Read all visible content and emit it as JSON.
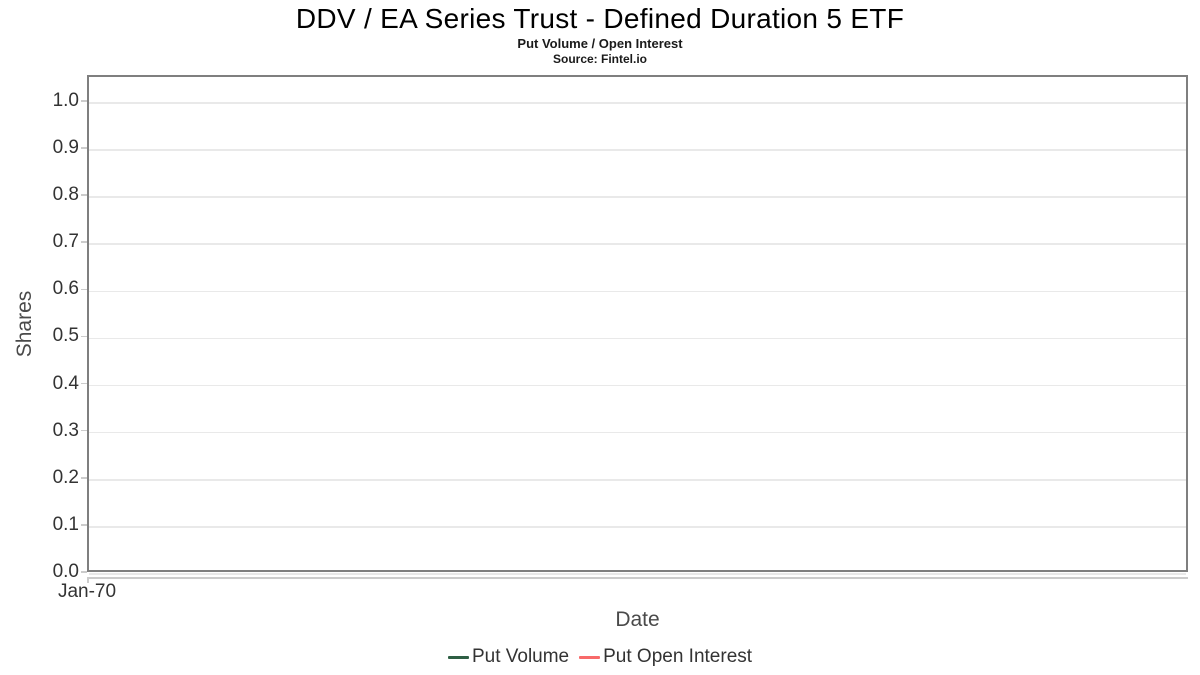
{
  "title": "DDV / EA Series Trust - Defined Duration 5 ETF",
  "subtitle": "Put Volume / Open Interest",
  "source": "Source: Fintel.io",
  "chart_data": {
    "type": "line",
    "title": "DDV / EA Series Trust - Defined Duration 5 ETF",
    "subtitle": "Put Volume / Open Interest",
    "source_note": "Source: Fintel.io",
    "xlabel": "Date",
    "ylabel": "Shares",
    "x_tick_labels": [
      "Jan-70"
    ],
    "y_ticks": [
      0,
      0.1,
      0.2,
      0.3,
      0.4,
      0.5,
      0.6,
      0.7,
      0.8,
      0.9,
      1.0
    ],
    "ylim": [
      0,
      1.055
    ],
    "grid": true,
    "legend_position": "bottom-center",
    "series": [
      {
        "name": "Put Volume",
        "color": "#2e5f44",
        "x": [],
        "values": []
      },
      {
        "name": "Put Open Interest",
        "color": "#f86a6a",
        "x": [],
        "values": []
      }
    ]
  },
  "colors": {
    "background": "#ffffff",
    "plot_border": "#7f7f7f",
    "gridline": "#e9e9e9",
    "axis_line": "#cccccc",
    "text": "#333333",
    "put_volume": "#2e5f44",
    "put_open_interest": "#f86a6a"
  }
}
